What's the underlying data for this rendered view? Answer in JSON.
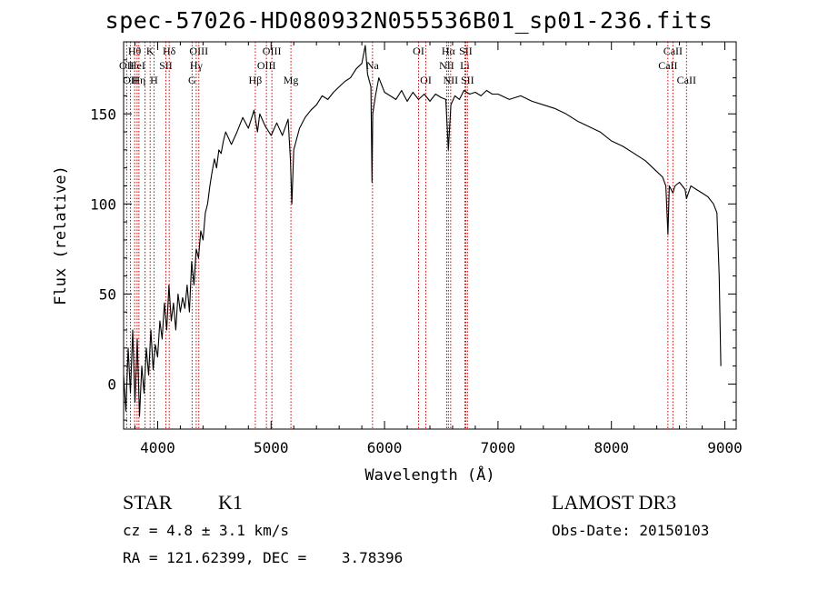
{
  "title": "spec-57026-HD080932N055536B01_sp01-236.fits",
  "info": {
    "class": "STAR",
    "subclass": "K1",
    "survey": "LAMOST DR3",
    "cz": "cz = 4.8 ± 3.1 km/s",
    "obs_date": "Obs-Date: 20150103",
    "radec": "RA = 121.62399, DEC =    3.78396"
  },
  "colors": {
    "spectrum": "#000000",
    "line_marker": "#cc0000",
    "axis": "#000000"
  },
  "chart_data": {
    "type": "line",
    "title": "spec-57026-HD080932N055536B01_sp01-236.fits",
    "xlabel": "Wavelength (Å)",
    "ylabel": "Flux (relative)",
    "xlim": [
      3700,
      9100
    ],
    "ylim": [
      -25,
      190
    ],
    "xticks": [
      4000,
      5000,
      6000,
      7000,
      8000,
      9000
    ],
    "yticks": [
      0,
      50,
      100,
      150
    ],
    "series": [
      {
        "points": [
          [
            3700,
            5
          ],
          [
            3720,
            -15
          ],
          [
            3740,
            20
          ],
          [
            3760,
            -5
          ],
          [
            3780,
            30
          ],
          [
            3800,
            -10
          ],
          [
            3820,
            25
          ],
          [
            3840,
            -18
          ],
          [
            3860,
            10
          ],
          [
            3880,
            -5
          ],
          [
            3900,
            20
          ],
          [
            3920,
            5
          ],
          [
            3940,
            30
          ],
          [
            3960,
            8
          ],
          [
            3980,
            22
          ],
          [
            4000,
            15
          ],
          [
            4020,
            35
          ],
          [
            4040,
            25
          ],
          [
            4060,
            45
          ],
          [
            4080,
            30
          ],
          [
            4100,
            55
          ],
          [
            4120,
            35
          ],
          [
            4140,
            45
          ],
          [
            4160,
            30
          ],
          [
            4180,
            50
          ],
          [
            4200,
            40
          ],
          [
            4220,
            48
          ],
          [
            4240,
            42
          ],
          [
            4260,
            55
          ],
          [
            4280,
            40
          ],
          [
            4300,
            68
          ],
          [
            4320,
            55
          ],
          [
            4340,
            75
          ],
          [
            4360,
            70
          ],
          [
            4380,
            85
          ],
          [
            4400,
            80
          ],
          [
            4420,
            95
          ],
          [
            4440,
            100
          ],
          [
            4460,
            110
          ],
          [
            4480,
            118
          ],
          [
            4500,
            125
          ],
          [
            4520,
            120
          ],
          [
            4540,
            130
          ],
          [
            4560,
            128
          ],
          [
            4580,
            135
          ],
          [
            4600,
            140
          ],
          [
            4650,
            133
          ],
          [
            4700,
            140
          ],
          [
            4750,
            148
          ],
          [
            4800,
            142
          ],
          [
            4850,
            152
          ],
          [
            4880,
            140
          ],
          [
            4900,
            150
          ],
          [
            4950,
            143
          ],
          [
            5000,
            138
          ],
          [
            5050,
            145
          ],
          [
            5100,
            138
          ],
          [
            5150,
            147
          ],
          [
            5170,
            125
          ],
          [
            5183,
            100
          ],
          [
            5200,
            130
          ],
          [
            5250,
            142
          ],
          [
            5300,
            148
          ],
          [
            5350,
            152
          ],
          [
            5400,
            155
          ],
          [
            5450,
            160
          ],
          [
            5500,
            158
          ],
          [
            5550,
            162
          ],
          [
            5600,
            165
          ],
          [
            5650,
            168
          ],
          [
            5700,
            170
          ],
          [
            5750,
            175
          ],
          [
            5800,
            178
          ],
          [
            5830,
            188
          ],
          [
            5850,
            172
          ],
          [
            5880,
            165
          ],
          [
            5890,
            112
          ],
          [
            5896,
            150
          ],
          [
            5920,
            160
          ],
          [
            5950,
            170
          ],
          [
            6000,
            162
          ],
          [
            6050,
            160
          ],
          [
            6100,
            158
          ],
          [
            6150,
            163
          ],
          [
            6200,
            157
          ],
          [
            6250,
            162
          ],
          [
            6300,
            158
          ],
          [
            6350,
            161
          ],
          [
            6400,
            157
          ],
          [
            6450,
            161
          ],
          [
            6500,
            159
          ],
          [
            6540,
            158
          ],
          [
            6563,
            130
          ],
          [
            6585,
            155
          ],
          [
            6620,
            160
          ],
          [
            6660,
            158
          ],
          [
            6700,
            163
          ],
          [
            6750,
            161
          ],
          [
            6800,
            162
          ],
          [
            6850,
            160
          ],
          [
            6900,
            163
          ],
          [
            6950,
            161
          ],
          [
            7000,
            161
          ],
          [
            7100,
            158
          ],
          [
            7200,
            160
          ],
          [
            7300,
            157
          ],
          [
            7400,
            155
          ],
          [
            7500,
            153
          ],
          [
            7600,
            150
          ],
          [
            7700,
            146
          ],
          [
            7800,
            143
          ],
          [
            7900,
            140
          ],
          [
            8000,
            135
          ],
          [
            8100,
            132
          ],
          [
            8200,
            128
          ],
          [
            8300,
            124
          ],
          [
            8400,
            118
          ],
          [
            8450,
            115
          ],
          [
            8480,
            110
          ],
          [
            8498,
            83
          ],
          [
            8510,
            110
          ],
          [
            8542,
            106
          ],
          [
            8560,
            110
          ],
          [
            8600,
            112
          ],
          [
            8650,
            108
          ],
          [
            8662,
            103
          ],
          [
            8700,
            110
          ],
          [
            8750,
            108
          ],
          [
            8800,
            106
          ],
          [
            8850,
            104
          ],
          [
            8900,
            100
          ],
          [
            8930,
            95
          ],
          [
            8950,
            60
          ],
          [
            8965,
            10
          ]
        ]
      }
    ],
    "line_markers": [
      {
        "wave": 3727,
        "label": "OII",
        "row": 1
      },
      {
        "wave": 3760,
        "label": "OII",
        "row": 2
      },
      {
        "wave": 3797,
        "label": "Hθ",
        "row": 0
      },
      {
        "wave": 3819,
        "label": "HeI",
        "row": 1
      },
      {
        "wave": 3835,
        "label": "Hη",
        "row": 2
      },
      {
        "wave": 3889,
        "label": "",
        "row": -1
      },
      {
        "wave": 3934,
        "label": "K",
        "row": 0
      },
      {
        "wave": 3968,
        "label": "H",
        "row": 2
      },
      {
        "wave": 4072,
        "label": "SII",
        "row": 1
      },
      {
        "wave": 4102,
        "label": "Hδ",
        "row": 0
      },
      {
        "wave": 4304,
        "label": "G",
        "row": 2
      },
      {
        "wave": 4340,
        "label": "Hγ",
        "row": 1
      },
      {
        "wave": 4363,
        "label": "OIII",
        "row": 0
      },
      {
        "wave": 4861,
        "label": "Hβ",
        "row": 2
      },
      {
        "wave": 4959,
        "label": "OIII",
        "row": 1
      },
      {
        "wave": 5007,
        "label": "OIII",
        "row": 0
      },
      {
        "wave": 5175,
        "label": "Mg",
        "row": 2
      },
      {
        "wave": 5894,
        "label": "Na",
        "row": 1
      },
      {
        "wave": 6300,
        "label": "OI",
        "row": 0
      },
      {
        "wave": 6364,
        "label": "OI",
        "row": 2
      },
      {
        "wave": 6548,
        "label": "NII",
        "row": 1
      },
      {
        "wave": 6563,
        "label": "Hα",
        "row": 0
      },
      {
        "wave": 6583,
        "label": "NII",
        "row": 2
      },
      {
        "wave": 6708,
        "label": "Li",
        "row": 1
      },
      {
        "wave": 6716,
        "label": "SII",
        "row": 0
      },
      {
        "wave": 6731,
        "label": "SII",
        "row": 2
      },
      {
        "wave": 8498,
        "label": "CaII",
        "row": 1
      },
      {
        "wave": 8542,
        "label": "CaII",
        "row": 0
      },
      {
        "wave": 8662,
        "label": "CaII",
        "row": 2
      }
    ]
  }
}
